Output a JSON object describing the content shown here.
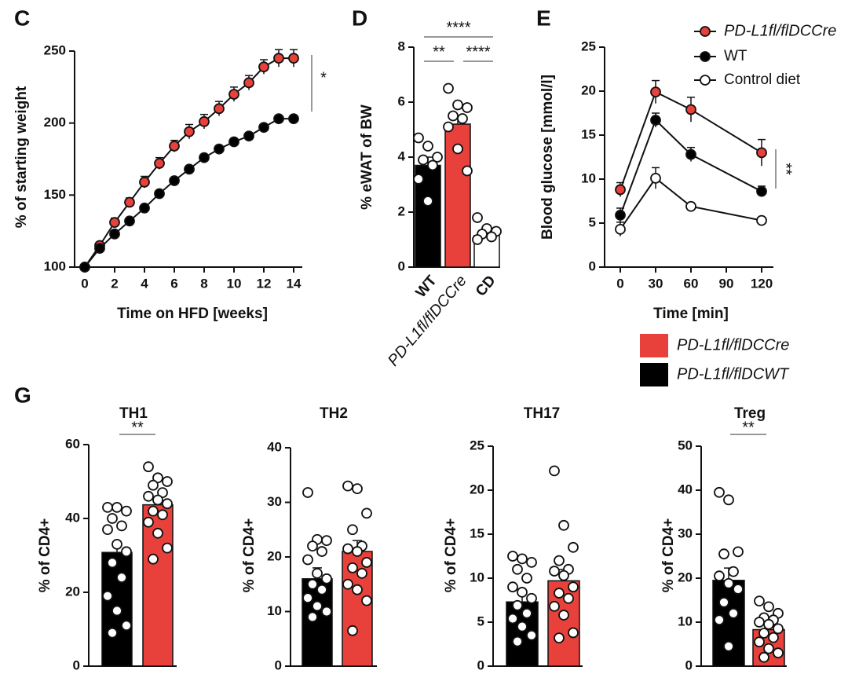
{
  "panel_labels": [
    "C",
    "D",
    "E",
    "G"
  ],
  "chart_data": [
    {
      "type": "line",
      "xlabel": "Time on HFD [weeks]",
      "ylabel": "% of starting weight",
      "x": [
        0,
        1,
        2,
        3,
        4,
        5,
        6,
        7,
        8,
        9,
        10,
        11,
        12,
        13,
        14
      ],
      "xlim": [
        0,
        14
      ],
      "xticks": [
        0,
        2,
        4,
        6,
        8,
        10,
        12,
        14
      ],
      "ylim": [
        100,
        250
      ],
      "yticks": [
        100,
        150,
        200,
        250
      ],
      "series": [
        {
          "name": "PD-L1fl/flDCCre",
          "color": "#e8413c",
          "values": [
            100,
            115,
            131,
            145,
            159,
            172,
            184,
            194,
            201,
            210,
            220,
            228,
            239,
            245,
            245
          ],
          "errors": [
            0,
            2,
            3,
            3,
            4,
            4,
            4,
            5,
            5,
            5,
            5,
            5,
            5,
            6,
            6
          ]
        },
        {
          "name": "WT",
          "color": "#000000",
          "values": [
            100,
            113,
            123,
            132,
            141,
            151,
            160,
            168,
            176,
            182,
            187,
            191,
            197,
            203,
            203
          ],
          "errors": [
            0,
            1,
            2,
            2,
            2,
            2,
            2,
            2,
            2,
            2,
            2,
            2,
            2,
            2,
            2
          ]
        }
      ],
      "annotations": [
        "*"
      ]
    },
    {
      "type": "bar",
      "ylabel": "% eWAT of BW",
      "categories": [
        "WT",
        "PD-L1fl/flDCCre",
        "CD"
      ],
      "values": [
        3.7,
        5.2,
        1.15
      ],
      "errors": [
        0.3,
        0.3,
        0.1
      ],
      "colors": [
        "#000000",
        "#e8413c",
        "#ffffff"
      ],
      "points": [
        [
          4.7,
          4.4,
          4.0,
          3.9,
          3.7,
          3.2,
          2.4
        ],
        [
          6.5,
          5.9,
          5.8,
          5.5,
          5.4,
          5.1,
          4.3,
          3.5
        ],
        [
          1.8,
          1.4,
          1.3,
          1.2,
          1.1,
          1.0
        ]
      ],
      "ylim": [
        0,
        8
      ],
      "yticks": [
        0,
        2,
        4,
        6,
        8
      ],
      "annotations": [
        "****",
        "**",
        "****"
      ]
    },
    {
      "type": "line",
      "xlabel": "Time [min]",
      "ylabel": "Blood glucose [mmol/l]",
      "x": [
        0,
        30,
        60,
        120
      ],
      "xlim": [
        0,
        120
      ],
      "xticks": [
        0,
        30,
        60,
        90,
        120
      ],
      "ylim": [
        0,
        25
      ],
      "yticks": [
        0,
        5,
        10,
        15,
        20,
        25
      ],
      "series": [
        {
          "name": "PD-L1fl/flDCCre",
          "color": "#e8413c",
          "values": [
            8.8,
            19.9,
            17.9,
            13.0
          ],
          "errors": [
            0.8,
            1.3,
            1.4,
            1.5
          ]
        },
        {
          "name": "WT",
          "color": "#000000",
          "values": [
            5.9,
            16.7,
            12.8,
            8.6
          ],
          "errors": [
            0.8,
            0.8,
            0.8,
            0.6
          ]
        },
        {
          "name": "Control diet",
          "color": "#ffffff",
          "values": [
            4.3,
            10.1,
            6.9,
            5.3
          ],
          "errors": [
            0.8,
            1.2,
            0.4,
            0.3
          ]
        }
      ],
      "legend": true,
      "annotations": [
        "**"
      ]
    },
    {
      "type": "bar",
      "title": "TH1",
      "ylabel": "% of CD4+",
      "values": [
        30.8,
        43.7
      ],
      "errors": [
        2.8,
        2.1
      ],
      "colors": [
        "#000000",
        "#e8413c"
      ],
      "points": [
        [
          43,
          43,
          42,
          40,
          38,
          37,
          33,
          31,
          28,
          24,
          19,
          15,
          11,
          9
        ],
        [
          54,
          51,
          50,
          49,
          47,
          46,
          45,
          44,
          42,
          41,
          39,
          36,
          32,
          29
        ]
      ],
      "ylim": [
        0,
        60
      ],
      "yticks": [
        0,
        20,
        40,
        60
      ],
      "annotations": [
        "**"
      ]
    },
    {
      "type": "bar",
      "title": "TH2",
      "ylabel": "% of CD4+",
      "values": [
        16,
        21
      ],
      "errors": [
        2.0,
        2.0
      ],
      "colors": [
        "#000000",
        "#e8413c"
      ],
      "points": [
        [
          31.8,
          23.2,
          23,
          22,
          21,
          19.5,
          17,
          16,
          15,
          14,
          12.5,
          11,
          10,
          9
        ],
        [
          33,
          32.5,
          28,
          25,
          22,
          21.5,
          21,
          19,
          18,
          17,
          15,
          14,
          12,
          6.5
        ]
      ],
      "ylim": [
        0,
        40
      ],
      "yticks": [
        0,
        10,
        20,
        30,
        40
      ]
    },
    {
      "type": "bar",
      "title": "TH17",
      "ylabel": "% of CD4+",
      "values": [
        7.3,
        9.7
      ],
      "errors": [
        0.9,
        1.3
      ],
      "colors": [
        "#000000",
        "#e8413c"
      ],
      "points": [
        [
          12.5,
          12.2,
          11.8,
          11,
          10,
          9,
          8.4,
          7.7,
          6.9,
          6,
          5.4,
          4.5,
          3.5,
          2.8
        ],
        [
          22.2,
          16,
          13.5,
          12,
          11,
          10.8,
          10.3,
          9,
          8.3,
          7.7,
          6.8,
          5.8,
          3.8,
          3.2
        ]
      ],
      "ylim": [
        0,
        25
      ],
      "yticks": [
        0,
        5,
        10,
        15,
        20,
        25
      ]
    },
    {
      "type": "bar",
      "title": "Treg",
      "ylabel": "% of CD4+",
      "values": [
        19.5,
        8.3
      ],
      "errors": [
        2.8,
        0.9
      ],
      "colors": [
        "#000000",
        "#e8413c"
      ],
      "points": [
        [
          39.5,
          37.8,
          26,
          25.5,
          21.5,
          20.5,
          18.8,
          17.5,
          14.5,
          12,
          10.5,
          4.5
        ],
        [
          14.8,
          13.5,
          12,
          11,
          10.5,
          10,
          9.5,
          8.5,
          7.5,
          6.5,
          5.5,
          4,
          3,
          2
        ]
      ],
      "ylim": [
        0,
        50
      ],
      "yticks": [
        0,
        10,
        20,
        30,
        40,
        50
      ],
      "annotations": [
        "**"
      ]
    }
  ],
  "g_legend": [
    {
      "name": "PD-L1fl/flDCCre",
      "color": "#e8413c"
    },
    {
      "name": "PD-L1fl/flDCWT",
      "color": "#000000"
    }
  ]
}
